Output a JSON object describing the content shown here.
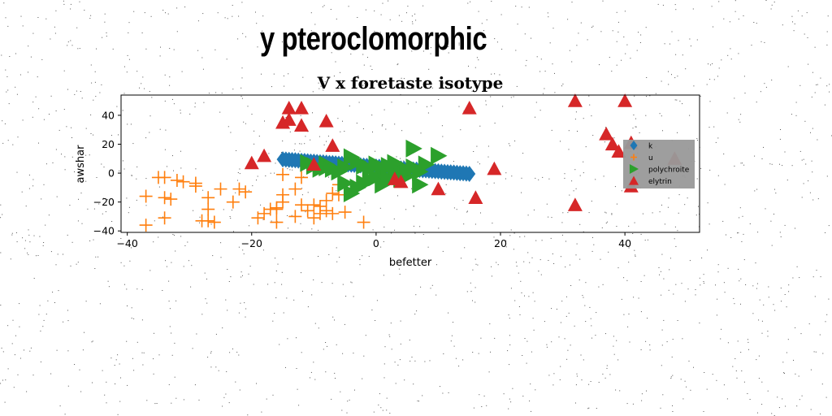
{
  "page_title": "y pteroclomorphic",
  "colors": {
    "k": "#1f77b4",
    "u": "#ff7f0e",
    "polychroite": "#2ca02c",
    "elytrin": "#d62728",
    "legend_bg": "#999999"
  },
  "chart_data": {
    "type": "scatter",
    "title": "V x foretaste isotype",
    "xlabel": "befetter",
    "ylabel": "awshar",
    "xlim": [
      -41,
      52
    ],
    "ylim": [
      -41,
      54
    ],
    "xticks": [
      -40,
      -20,
      0,
      20,
      40
    ],
    "yticks": [
      -40,
      -20,
      0,
      20,
      40
    ],
    "grid": false,
    "legend_placement": "center-right",
    "series": [
      {
        "name": "k",
        "marker": "diamond",
        "points": [
          [
            -15.0,
            9.5
          ],
          [
            -14.0,
            9.2
          ],
          [
            -13.0,
            8.9
          ],
          [
            -12.0,
            8.5
          ],
          [
            -11.0,
            8.2
          ],
          [
            -10.0,
            7.9
          ],
          [
            -9.0,
            7.5
          ],
          [
            -8.0,
            7.2
          ],
          [
            -7.0,
            6.9
          ],
          [
            -6.0,
            6.5
          ],
          [
            -5.0,
            6.2
          ],
          [
            -4.0,
            5.9
          ],
          [
            -3.0,
            5.5
          ],
          [
            -2.0,
            5.2
          ],
          [
            -1.0,
            4.9
          ],
          [
            0.0,
            4.5
          ],
          [
            1.0,
            4.2
          ],
          [
            2.0,
            3.9
          ],
          [
            3.0,
            3.5
          ],
          [
            4.0,
            3.2
          ],
          [
            5.0,
            2.9
          ],
          [
            6.0,
            2.5
          ],
          [
            7.0,
            2.2
          ],
          [
            8.0,
            1.9
          ],
          [
            9.0,
            1.5
          ],
          [
            10.0,
            1.2
          ],
          [
            11.0,
            0.9
          ],
          [
            12.0,
            0.5
          ],
          [
            13.0,
            0.2
          ],
          [
            14.0,
            -0.1
          ],
          [
            15.0,
            -0.5
          ],
          [
            -14.5,
            9.4
          ],
          [
            -13.5,
            9.0
          ],
          [
            -12.5,
            8.7
          ],
          [
            -11.5,
            8.4
          ],
          [
            -10.5,
            8.0
          ],
          [
            -9.5,
            7.7
          ],
          [
            -8.5,
            7.4
          ],
          [
            -7.5,
            7.0
          ],
          [
            -6.5,
            6.7
          ],
          [
            -5.5,
            6.4
          ],
          [
            -4.5,
            6.0
          ],
          [
            -3.5,
            5.7
          ],
          [
            -2.5,
            5.4
          ],
          [
            -1.5,
            5.0
          ],
          [
            -0.5,
            4.7
          ],
          [
            0.5,
            4.4
          ],
          [
            1.5,
            4.0
          ],
          [
            2.5,
            3.7
          ],
          [
            3.5,
            3.4
          ],
          [
            4.5,
            3.0
          ],
          [
            5.5,
            2.7
          ],
          [
            6.5,
            2.4
          ],
          [
            7.5,
            2.0
          ],
          [
            8.5,
            1.7
          ],
          [
            9.5,
            1.4
          ],
          [
            10.5,
            1.0
          ],
          [
            11.5,
            0.7
          ],
          [
            12.5,
            0.4
          ],
          [
            13.5,
            0.0
          ],
          [
            14.5,
            -0.3
          ]
        ]
      },
      {
        "name": "u",
        "marker": "plus",
        "points": [
          [
            -37,
            -36
          ],
          [
            -37,
            -16
          ],
          [
            -35,
            -3
          ],
          [
            -34,
            -3
          ],
          [
            -34,
            -31
          ],
          [
            -34,
            -17
          ],
          [
            -33,
            -18
          ],
          [
            -32,
            -5
          ],
          [
            -31,
            -6
          ],
          [
            -29,
            -7
          ],
          [
            -29,
            -9
          ],
          [
            -28,
            -33
          ],
          [
            -27,
            -17
          ],
          [
            -27,
            -25
          ],
          [
            -27,
            -33
          ],
          [
            -26,
            -34
          ],
          [
            -25,
            -11
          ],
          [
            -23,
            -20
          ],
          [
            -22,
            -11
          ],
          [
            -21,
            -13
          ],
          [
            -19,
            -31
          ],
          [
            -18,
            -28
          ],
          [
            -17,
            -25
          ],
          [
            -16,
            -25
          ],
          [
            -16,
            -34
          ],
          [
            -16,
            -24
          ],
          [
            -15,
            -15
          ],
          [
            -15,
            -1
          ],
          [
            -15,
            -20
          ],
          [
            -13,
            -30
          ],
          [
            -13,
            -11
          ],
          [
            -12,
            -3
          ],
          [
            -12,
            -22
          ],
          [
            -11,
            -26
          ],
          [
            -10,
            -22
          ],
          [
            -10,
            -31
          ],
          [
            -9,
            -23
          ],
          [
            -9,
            -28
          ],
          [
            -8,
            -19
          ],
          [
            -8,
            -26
          ],
          [
            -7,
            -28
          ],
          [
            -7,
            -14
          ],
          [
            -6,
            -8
          ],
          [
            -6,
            -15
          ],
          [
            -5,
            -27
          ],
          [
            -2,
            -34
          ]
        ]
      },
      {
        "name": "polychroite",
        "marker": "triangle-right",
        "points": [
          [
            -11,
            7
          ],
          [
            -10,
            5
          ],
          [
            -9,
            3
          ],
          [
            -8,
            6
          ],
          [
            -7,
            3
          ],
          [
            -5,
            4
          ],
          [
            -4,
            11
          ],
          [
            -3,
            8
          ],
          [
            -2,
            5
          ],
          [
            -1,
            3
          ],
          [
            0,
            6
          ],
          [
            1,
            2
          ],
          [
            2,
            5
          ],
          [
            3,
            0
          ],
          [
            4,
            3
          ],
          [
            5,
            -2
          ],
          [
            6,
            4
          ],
          [
            7,
            -8
          ],
          [
            8,
            6
          ],
          [
            10,
            12
          ],
          [
            -4,
            -14
          ],
          [
            -3,
            -10
          ],
          [
            -2,
            -7
          ],
          [
            -1,
            -5
          ],
          [
            0,
            -3
          ],
          [
            1,
            -8
          ],
          [
            2,
            -4
          ],
          [
            -6,
            1
          ],
          [
            -8,
            4
          ],
          [
            3,
            7
          ],
          [
            4,
            -4
          ],
          [
            5,
            2
          ],
          [
            6,
            17
          ],
          [
            7,
            1
          ],
          [
            -5,
            -7
          ]
        ]
      },
      {
        "name": "elytrin",
        "marker": "triangle-up",
        "points": [
          [
            -14,
            45
          ],
          [
            -12,
            45
          ],
          [
            -14,
            37
          ],
          [
            -15,
            35
          ],
          [
            -12,
            33
          ],
          [
            -8,
            36
          ],
          [
            -7,
            19
          ],
          [
            -18,
            12
          ],
          [
            -20,
            7
          ],
          [
            -10,
            6
          ],
          [
            3,
            -4
          ],
          [
            4,
            -6
          ],
          [
            10,
            -11
          ],
          [
            15,
            45
          ],
          [
            16,
            -17
          ],
          [
            19,
            3
          ],
          [
            32,
            50
          ],
          [
            32,
            -22
          ],
          [
            37,
            27
          ],
          [
            38,
            20
          ],
          [
            39,
            15
          ],
          [
            40,
            50
          ],
          [
            41,
            21
          ],
          [
            41,
            -9
          ],
          [
            48,
            10
          ]
        ]
      }
    ]
  }
}
